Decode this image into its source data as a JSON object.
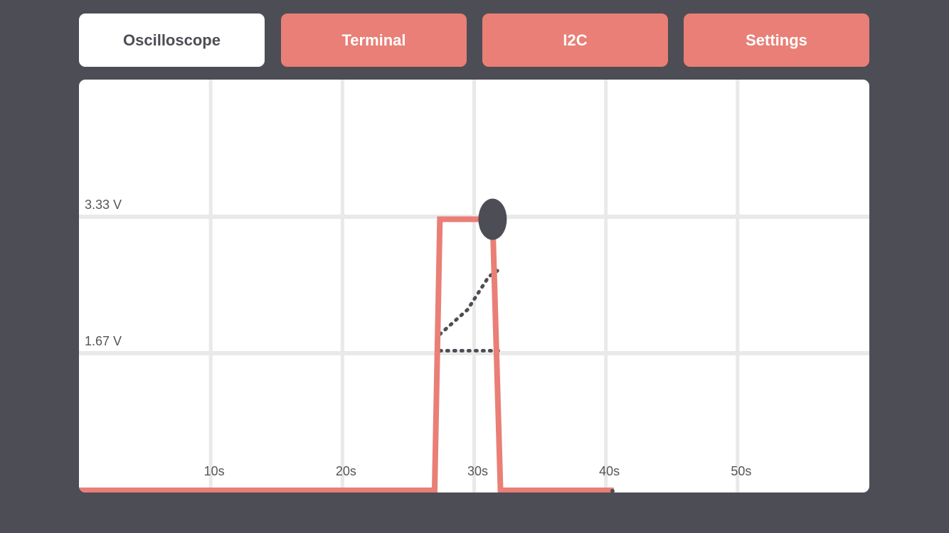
{
  "tabs": [
    {
      "label": "Oscilloscope",
      "active": true
    },
    {
      "label": "Terminal",
      "active": false
    },
    {
      "label": "I2C",
      "active": false
    },
    {
      "label": "Settings",
      "active": false
    }
  ],
  "colors": {
    "background": "#4d4d55",
    "accent": "#e97f76",
    "grid": "#e9e9e9",
    "marker": "#4d4d55"
  },
  "chart_data": {
    "type": "line",
    "x_unit": "s",
    "y_unit": "V",
    "xlim": [
      0,
      60
    ],
    "ylim": [
      0,
      5
    ],
    "x_ticks": [
      10,
      20,
      30,
      40,
      50
    ],
    "x_tick_labels": [
      "10s",
      "20s",
      "30s",
      "40s",
      "50s"
    ],
    "y_ticks": [
      1.67,
      3.33
    ],
    "y_tick_labels": [
      "1.67 V",
      "3.33 V"
    ],
    "grid": true,
    "series": [
      {
        "points": [
          [
            0,
            0
          ],
          [
            27,
            0
          ],
          [
            27.4,
            3.3
          ],
          [
            31.4,
            3.3
          ],
          [
            32,
            0
          ],
          [
            40.6,
            0
          ]
        ],
        "color": "#e97f76"
      }
    ],
    "marker": {
      "x": 31.4,
      "y": 3.3,
      "color": "#4d4d55"
    },
    "end_dot": {
      "x": 40.5,
      "y": 0
    },
    "dotted_lines": [
      {
        "points": [
          [
            27.4,
            1.9
          ],
          [
            29.5,
            2.2
          ],
          [
            31.1,
            2.6
          ],
          [
            32,
            2.7
          ]
        ]
      },
      {
        "points": [
          [
            27.4,
            1.7
          ],
          [
            32,
            1.7
          ]
        ]
      }
    ]
  }
}
